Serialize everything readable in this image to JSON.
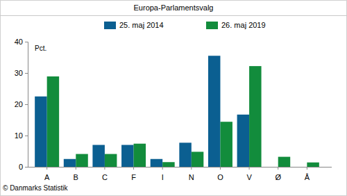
{
  "chart_data": {
    "type": "bar",
    "title": "Europa-Parlamentsvalg",
    "y_label": "Pct.",
    "annotations": [
      "© Danmarks Statistik"
    ],
    "categories": [
      "A",
      "B",
      "C",
      "F",
      "I",
      "N",
      "O",
      "V",
      "Ø",
      "Å"
    ],
    "series": [
      {
        "name": "25. maj 2014",
        "color": "#0b5f91",
        "values": [
          22.5,
          2.5,
          7.0,
          7.0,
          2.5,
          7.7,
          35.5,
          16.7,
          null,
          null
        ]
      },
      {
        "name": "26. maj 2019",
        "color": "#128c3c",
        "values": [
          28.9,
          4.1,
          4.1,
          7.4,
          1.5,
          4.8,
          14.4,
          32.2,
          3.2,
          1.4
        ]
      }
    ],
    "ylim": [
      0,
      40
    ],
    "yticks": [
      0,
      10,
      20,
      30,
      40
    ],
    "grid": false,
    "legend": "top"
  }
}
